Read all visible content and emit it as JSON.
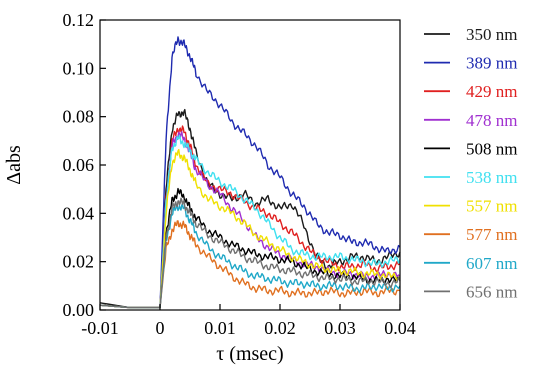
{
  "chart_data": {
    "type": "line",
    "title": "",
    "xlabel": "τ (msec)",
    "ylabel": "Δabs",
    "xlim": [
      -0.01,
      0.04
    ],
    "ylim": [
      0.0,
      0.12
    ],
    "xticks": [
      "-0.01",
      "0",
      "0.01",
      "0.02",
      "0.03",
      "0.04"
    ],
    "yticks": [
      "0.00",
      "0.02",
      "0.04",
      "0.06",
      "0.08",
      "0.10",
      "0.12"
    ],
    "grid": false,
    "legend_position": "right",
    "series": [
      {
        "name": "350 nm",
        "color": "#1a1a1a",
        "x": [
          -0.01,
          -0.005,
          0,
          0.001,
          0.002,
          0.003,
          0.004,
          0.005,
          0.006,
          0.008,
          0.01,
          0.012,
          0.014,
          0.016,
          0.018,
          0.02,
          0.022,
          0.024,
          0.026,
          0.028,
          0.03,
          0.032,
          0.034,
          0.036,
          0.038,
          0.04
        ],
        "y": [
          0.003,
          0.001,
          0.001,
          0.05,
          0.075,
          0.081,
          0.082,
          0.075,
          0.065,
          0.052,
          0.048,
          0.046,
          0.048,
          0.044,
          0.046,
          0.042,
          0.044,
          0.035,
          0.022,
          0.018,
          0.02,
          0.022,
          0.022,
          0.02,
          0.022,
          0.024
        ]
      },
      {
        "name": "389 nm",
        "color": "#1f2bb0",
        "x": [
          -0.01,
          -0.005,
          0,
          0.001,
          0.002,
          0.003,
          0.004,
          0.005,
          0.006,
          0.008,
          0.01,
          0.012,
          0.014,
          0.016,
          0.018,
          0.02,
          0.022,
          0.024,
          0.026,
          0.028,
          0.03,
          0.032,
          0.034,
          0.036,
          0.038,
          0.04
        ],
        "y": [
          0.002,
          0.001,
          0.001,
          0.07,
          0.105,
          0.112,
          0.11,
          0.105,
          0.098,
          0.09,
          0.085,
          0.078,
          0.073,
          0.068,
          0.06,
          0.055,
          0.048,
          0.043,
          0.036,
          0.032,
          0.031,
          0.028,
          0.028,
          0.026,
          0.024,
          0.026
        ]
      },
      {
        "name": "429 nm",
        "color": "#e02020",
        "x": [
          -0.01,
          -0.005,
          0,
          0.001,
          0.002,
          0.003,
          0.004,
          0.005,
          0.006,
          0.008,
          0.01,
          0.012,
          0.014,
          0.016,
          0.018,
          0.02,
          0.022,
          0.024,
          0.026,
          0.028,
          0.03,
          0.032,
          0.034,
          0.036,
          0.038,
          0.04
        ],
        "y": [
          0.002,
          0.001,
          0.001,
          0.045,
          0.07,
          0.075,
          0.074,
          0.068,
          0.06,
          0.052,
          0.05,
          0.048,
          0.045,
          0.042,
          0.04,
          0.036,
          0.032,
          0.027,
          0.022,
          0.02,
          0.018,
          0.018,
          0.019,
          0.017,
          0.018,
          0.019
        ]
      },
      {
        "name": "478 nm",
        "color": "#a030d0",
        "x": [
          -0.01,
          -0.005,
          0,
          0.001,
          0.002,
          0.003,
          0.004,
          0.005,
          0.006,
          0.008,
          0.01,
          0.012,
          0.014,
          0.016,
          0.018,
          0.02,
          0.022,
          0.024,
          0.026,
          0.028,
          0.03,
          0.032,
          0.034,
          0.036,
          0.038,
          0.04
        ],
        "y": [
          0.002,
          0.001,
          0.001,
          0.045,
          0.068,
          0.073,
          0.071,
          0.065,
          0.058,
          0.052,
          0.048,
          0.042,
          0.037,
          0.03,
          0.026,
          0.023,
          0.021,
          0.019,
          0.018,
          0.016,
          0.015,
          0.015,
          0.014,
          0.014,
          0.015,
          0.014
        ]
      },
      {
        "name": "508 nm",
        "color": "#000000",
        "x": [
          -0.01,
          -0.005,
          0,
          0.001,
          0.002,
          0.003,
          0.004,
          0.005,
          0.006,
          0.008,
          0.01,
          0.012,
          0.014,
          0.016,
          0.018,
          0.02,
          0.022,
          0.024,
          0.026,
          0.028,
          0.03,
          0.032,
          0.034,
          0.036,
          0.038,
          0.04
        ],
        "y": [
          0.002,
          0.001,
          0.001,
          0.032,
          0.045,
          0.049,
          0.047,
          0.042,
          0.038,
          0.033,
          0.03,
          0.027,
          0.025,
          0.023,
          0.022,
          0.021,
          0.02,
          0.018,
          0.016,
          0.015,
          0.014,
          0.014,
          0.013,
          0.012,
          0.013,
          0.012
        ]
      },
      {
        "name": "538 nm",
        "color": "#40e0f0",
        "x": [
          -0.01,
          -0.005,
          0,
          0.001,
          0.002,
          0.003,
          0.004,
          0.005,
          0.006,
          0.008,
          0.01,
          0.012,
          0.014,
          0.016,
          0.018,
          0.02,
          0.022,
          0.024,
          0.026,
          0.028,
          0.03,
          0.032,
          0.034,
          0.036,
          0.038,
          0.04
        ],
        "y": [
          0.002,
          0.001,
          0.001,
          0.045,
          0.067,
          0.071,
          0.069,
          0.066,
          0.062,
          0.057,
          0.053,
          0.05,
          0.046,
          0.042,
          0.036,
          0.03,
          0.025,
          0.023,
          0.022,
          0.022,
          0.022,
          0.021,
          0.02,
          0.019,
          0.02,
          0.021
        ]
      },
      {
        "name": "557 nm",
        "color": "#f0e000",
        "x": [
          -0.01,
          -0.005,
          0,
          0.001,
          0.002,
          0.003,
          0.004,
          0.005,
          0.006,
          0.008,
          0.01,
          0.012,
          0.014,
          0.016,
          0.018,
          0.02,
          0.022,
          0.024,
          0.026,
          0.028,
          0.03,
          0.032,
          0.034,
          0.036,
          0.038,
          0.04
        ],
        "y": [
          0.002,
          0.001,
          0.001,
          0.04,
          0.061,
          0.065,
          0.063,
          0.058,
          0.052,
          0.046,
          0.043,
          0.04,
          0.036,
          0.031,
          0.028,
          0.025,
          0.022,
          0.02,
          0.018,
          0.017,
          0.016,
          0.016,
          0.015,
          0.015,
          0.014,
          0.014
        ]
      },
      {
        "name": "577 nm",
        "color": "#e07020",
        "x": [
          -0.01,
          -0.005,
          0,
          0.001,
          0.002,
          0.003,
          0.004,
          0.005,
          0.006,
          0.008,
          0.01,
          0.012,
          0.014,
          0.016,
          0.018,
          0.02,
          0.022,
          0.024,
          0.026,
          0.028,
          0.03,
          0.032,
          0.034,
          0.036,
          0.038,
          0.04
        ],
        "y": [
          0.002,
          0.001,
          0.001,
          0.025,
          0.033,
          0.036,
          0.035,
          0.031,
          0.027,
          0.022,
          0.018,
          0.014,
          0.011,
          0.009,
          0.008,
          0.008,
          0.007,
          0.007,
          0.007,
          0.008,
          0.007,
          0.007,
          0.008,
          0.007,
          0.008,
          0.008
        ]
      },
      {
        "name": "607 nm",
        "color": "#20a8c8",
        "x": [
          -0.01,
          -0.005,
          0,
          0.001,
          0.002,
          0.003,
          0.004,
          0.005,
          0.006,
          0.008,
          0.01,
          0.012,
          0.014,
          0.016,
          0.018,
          0.02,
          0.022,
          0.024,
          0.026,
          0.028,
          0.03,
          0.032,
          0.034,
          0.036,
          0.038,
          0.04
        ],
        "y": [
          0.002,
          0.001,
          0.001,
          0.028,
          0.04,
          0.043,
          0.042,
          0.037,
          0.032,
          0.026,
          0.022,
          0.019,
          0.016,
          0.014,
          0.013,
          0.012,
          0.011,
          0.011,
          0.01,
          0.01,
          0.01,
          0.009,
          0.009,
          0.01,
          0.009,
          0.01
        ]
      },
      {
        "name": "656 nm",
        "color": "#707070",
        "x": [
          -0.01,
          -0.005,
          0,
          0.001,
          0.002,
          0.003,
          0.004,
          0.005,
          0.006,
          0.008,
          0.01,
          0.012,
          0.014,
          0.016,
          0.018,
          0.02,
          0.022,
          0.024,
          0.026,
          0.028,
          0.03,
          0.032,
          0.034,
          0.036,
          0.038,
          0.04
        ],
        "y": [
          0.002,
          0.001,
          0.001,
          0.03,
          0.042,
          0.045,
          0.044,
          0.04,
          0.036,
          0.031,
          0.028,
          0.025,
          0.022,
          0.02,
          0.018,
          0.017,
          0.016,
          0.015,
          0.014,
          0.013,
          0.013,
          0.012,
          0.012,
          0.012,
          0.011,
          0.012
        ]
      }
    ]
  }
}
